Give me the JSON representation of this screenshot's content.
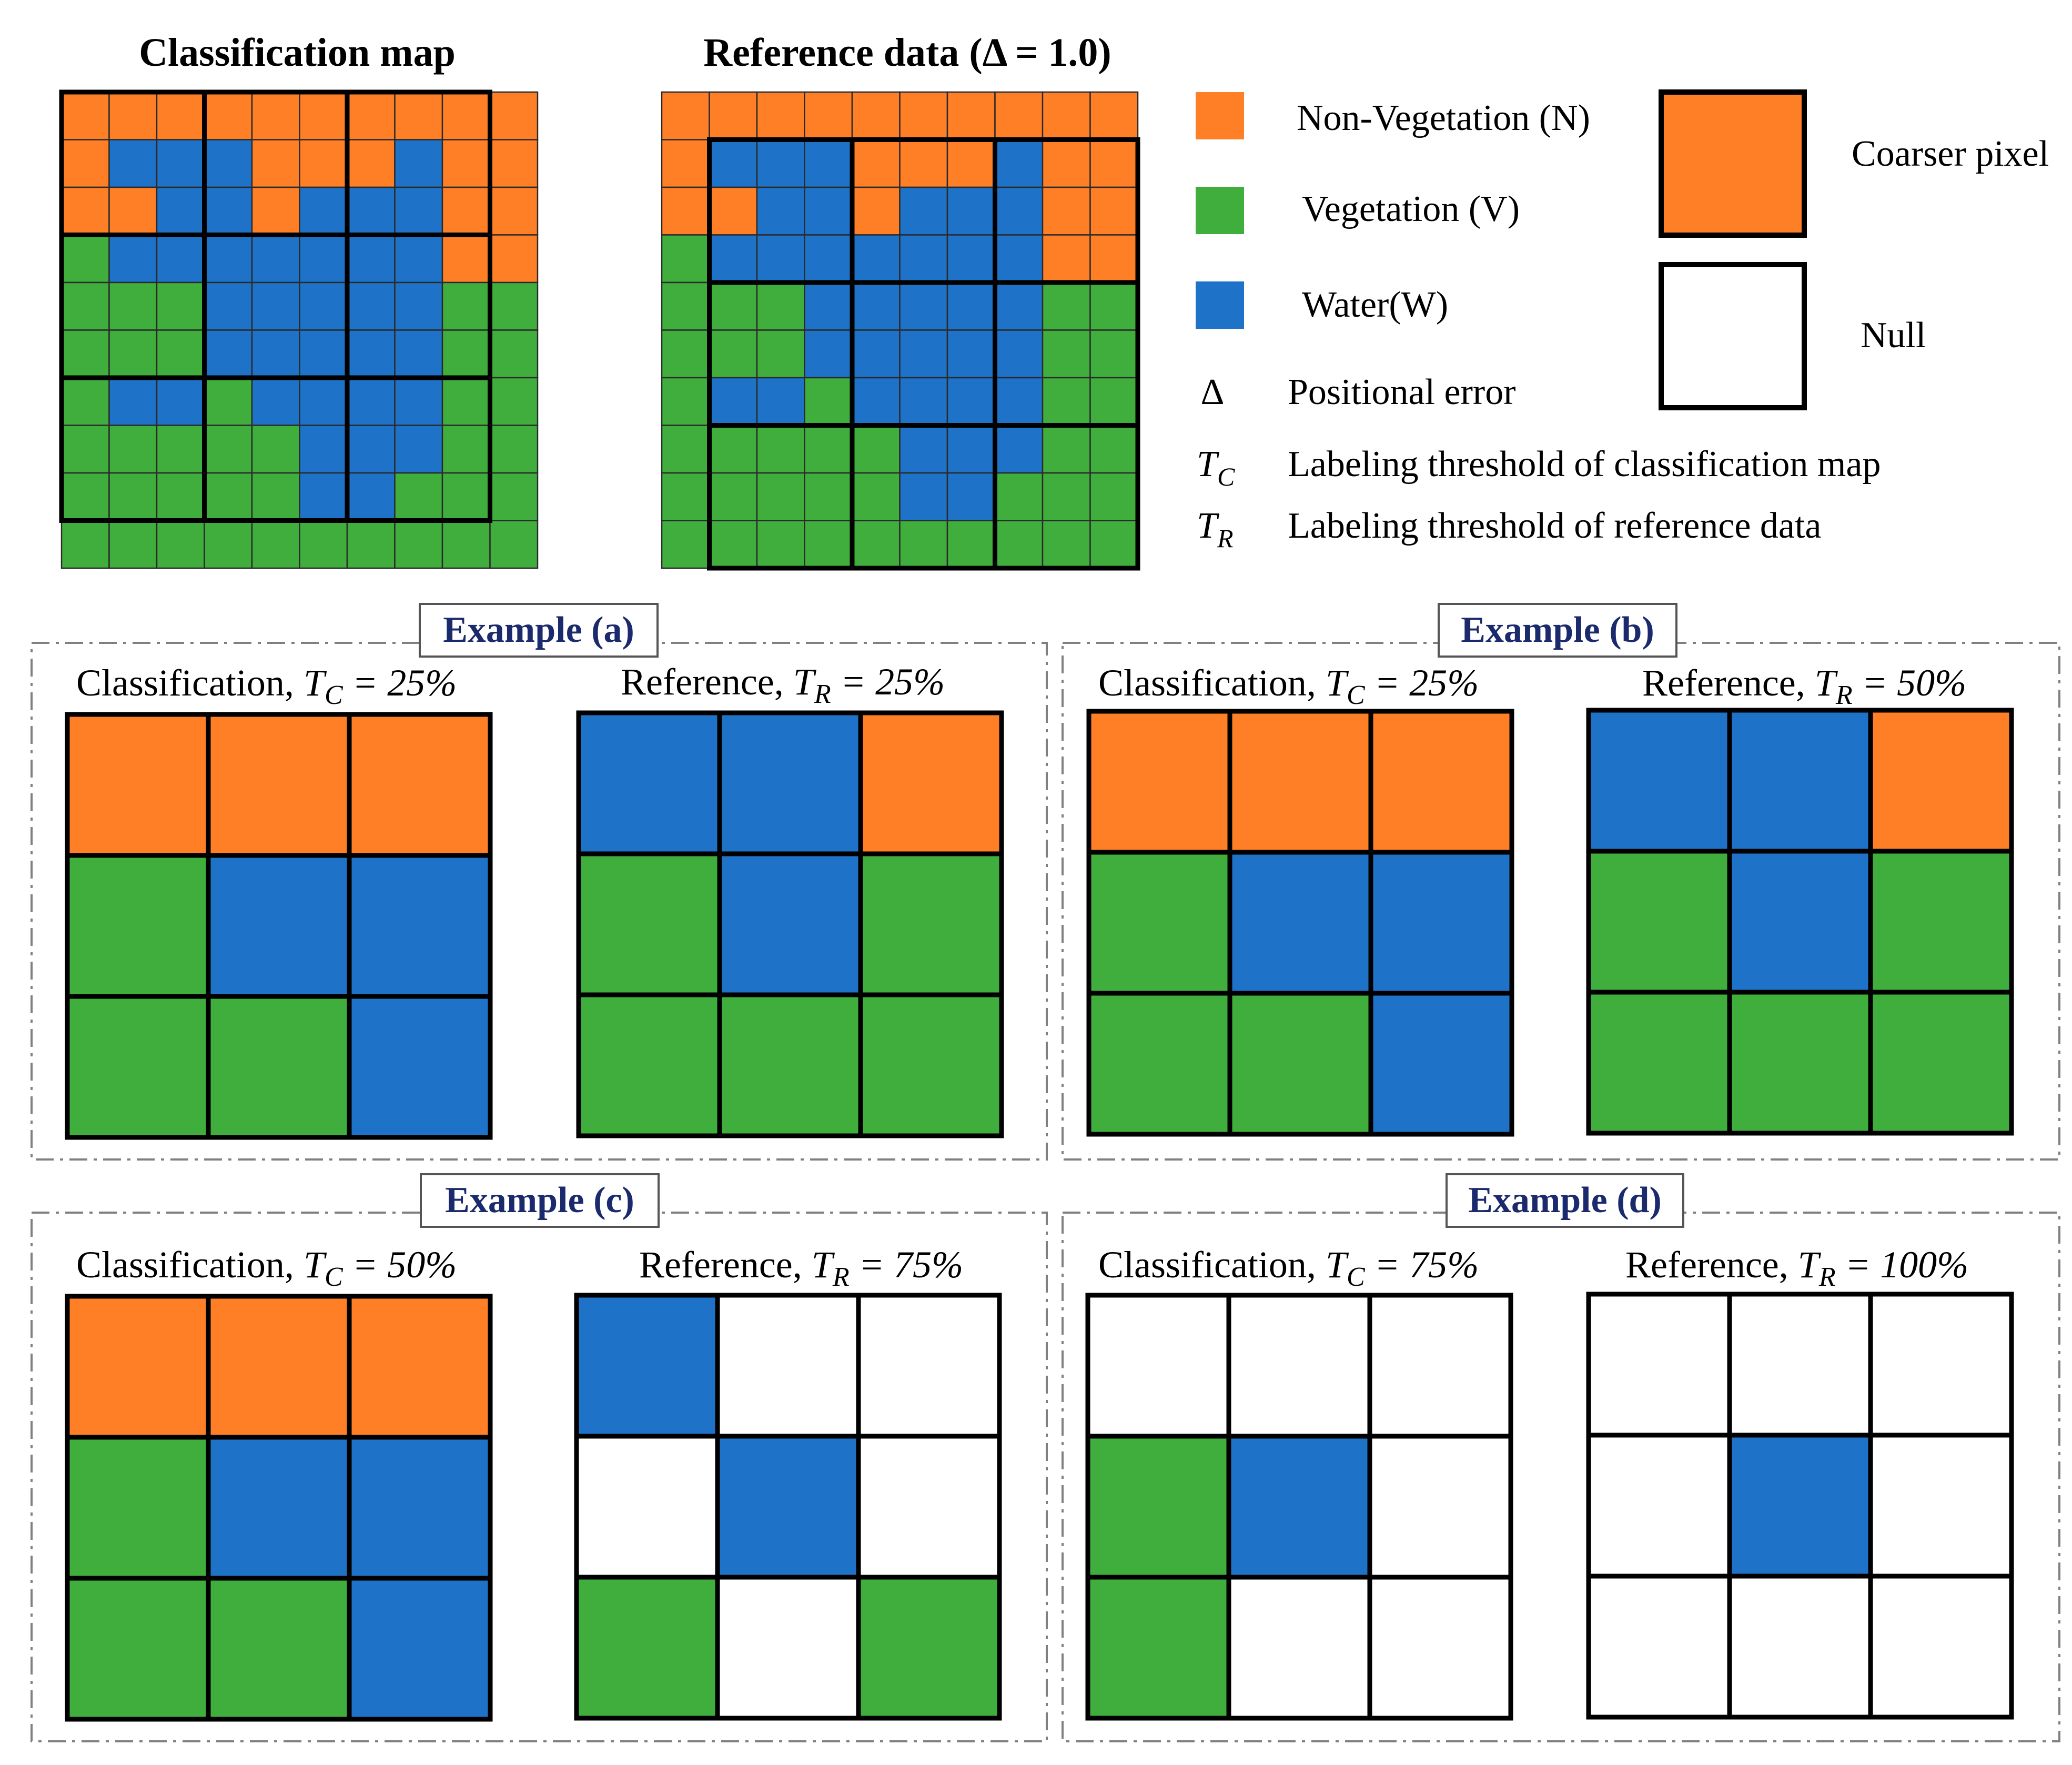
{
  "colors": {
    "N": "#FF7F27",
    "V": "#40AE3C",
    "W": "#1E73C8",
    "null": "#FFFFFF",
    "grid_line": "#000000",
    "example_label": "#1a2a6c",
    "dash": "#808080"
  },
  "titles": {
    "classification_map": "Classification map",
    "reference_data": "Reference data (Δ = 1.0)"
  },
  "legend": {
    "non_vegetation": "Non-Vegetation (N)",
    "vegetation": "Vegetation (V)",
    "water": "Water(W)",
    "delta_symbol": "Δ",
    "positional_error": "Positional error",
    "tc_symbol_main": "T",
    "tc_symbol_sub": "C",
    "tc_desc": "Labeling threshold of classification map",
    "tr_symbol_main": "T",
    "tr_symbol_sub": "R",
    "tr_desc": "Labeling threshold of reference data",
    "coarser_pixel": "Coarser pixel",
    "null": "Null"
  },
  "classification_grid": [
    [
      "N",
      "N",
      "N",
      "N",
      "N",
      "N",
      "N",
      "N",
      "N",
      "N"
    ],
    [
      "N",
      "W",
      "W",
      "W",
      "N",
      "N",
      "N",
      "W",
      "N",
      "N"
    ],
    [
      "N",
      "N",
      "W",
      "W",
      "N",
      "W",
      "W",
      "W",
      "N",
      "N"
    ],
    [
      "V",
      "W",
      "W",
      "W",
      "W",
      "W",
      "W",
      "W",
      "N",
      "N"
    ],
    [
      "V",
      "V",
      "V",
      "W",
      "W",
      "W",
      "W",
      "W",
      "V",
      "V"
    ],
    [
      "V",
      "V",
      "V",
      "W",
      "W",
      "W",
      "W",
      "W",
      "V",
      "V"
    ],
    [
      "V",
      "W",
      "W",
      "V",
      "W",
      "W",
      "W",
      "W",
      "V",
      "V"
    ],
    [
      "V",
      "V",
      "V",
      "V",
      "V",
      "W",
      "W",
      "W",
      "V",
      "V"
    ],
    [
      "V",
      "V",
      "V",
      "V",
      "V",
      "W",
      "W",
      "V",
      "V",
      "V"
    ],
    [
      "V",
      "V",
      "V",
      "V",
      "V",
      "V",
      "V",
      "V",
      "V",
      "V"
    ]
  ],
  "reference_grid": [
    [
      "N",
      "N",
      "N",
      "N",
      "N",
      "N",
      "N",
      "N",
      "N",
      "N"
    ],
    [
      "N",
      "W",
      "W",
      "W",
      "N",
      "N",
      "N",
      "W",
      "N",
      "N"
    ],
    [
      "N",
      "N",
      "W",
      "W",
      "N",
      "W",
      "W",
      "W",
      "N",
      "N"
    ],
    [
      "V",
      "W",
      "W",
      "W",
      "W",
      "W",
      "W",
      "W",
      "N",
      "N"
    ],
    [
      "V",
      "V",
      "V",
      "W",
      "W",
      "W",
      "W",
      "W",
      "V",
      "V"
    ],
    [
      "V",
      "V",
      "V",
      "W",
      "W",
      "W",
      "W",
      "W",
      "V",
      "V"
    ],
    [
      "V",
      "W",
      "W",
      "V",
      "W",
      "W",
      "W",
      "W",
      "V",
      "V"
    ],
    [
      "V",
      "V",
      "V",
      "V",
      "V",
      "W",
      "W",
      "W",
      "V",
      "V"
    ],
    [
      "V",
      "V",
      "V",
      "V",
      "V",
      "W",
      "W",
      "V",
      "V",
      "V"
    ],
    [
      "V",
      "V",
      "V",
      "V",
      "V",
      "V",
      "V",
      "V",
      "V",
      "V"
    ]
  ],
  "examples": [
    {
      "label": "Example (a)",
      "classification": {
        "title": "Classification, ",
        "threshold_symbol": "T",
        "threshold_sub": "C",
        "threshold_value": " = 25%",
        "cells": [
          [
            "N",
            "N",
            "N"
          ],
          [
            "V",
            "W",
            "W"
          ],
          [
            "V",
            "V",
            "W"
          ]
        ]
      },
      "reference": {
        "title": "Reference, ",
        "threshold_symbol": "T",
        "threshold_sub": "R",
        "threshold_value": " = 25%",
        "cells": [
          [
            "W",
            "W",
            "N"
          ],
          [
            "V",
            "W",
            "V"
          ],
          [
            "V",
            "V",
            "V"
          ]
        ]
      }
    },
    {
      "label": "Example (b)",
      "classification": {
        "title": "Classification, ",
        "threshold_symbol": "T",
        "threshold_sub": "C",
        "threshold_value": " = 25%",
        "cells": [
          [
            "N",
            "N",
            "N"
          ],
          [
            "V",
            "W",
            "W"
          ],
          [
            "V",
            "V",
            "W"
          ]
        ]
      },
      "reference": {
        "title": "Reference, ",
        "threshold_symbol": "T",
        "threshold_sub": "R",
        "threshold_value": " = 50%",
        "cells": [
          [
            "W",
            "W",
            "N"
          ],
          [
            "V",
            "W",
            "V"
          ],
          [
            "V",
            "V",
            "V"
          ]
        ]
      }
    },
    {
      "label": "Example (c)",
      "classification": {
        "title": "Classification, ",
        "threshold_symbol": "T",
        "threshold_sub": "C",
        "threshold_value": " = 50%",
        "cells": [
          [
            "N",
            "N",
            "N"
          ],
          [
            "V",
            "W",
            "W"
          ],
          [
            "V",
            "V",
            "W"
          ]
        ]
      },
      "reference": {
        "title": "Reference, ",
        "threshold_symbol": "T",
        "threshold_sub": "R",
        "threshold_value": " = 75%",
        "cells": [
          [
            "W",
            "null",
            "null"
          ],
          [
            "null",
            "W",
            "null"
          ],
          [
            "V",
            "null",
            "V"
          ]
        ]
      }
    },
    {
      "label": "Example (d)",
      "classification": {
        "title": "Classification, ",
        "threshold_symbol": "T",
        "threshold_sub": "C",
        "threshold_value": " = 75%",
        "cells": [
          [
            "null",
            "null",
            "null"
          ],
          [
            "V",
            "W",
            "null"
          ],
          [
            "V",
            "null",
            "null"
          ]
        ]
      },
      "reference": {
        "title": "Reference, ",
        "threshold_symbol": "T",
        "threshold_sub": "R",
        "threshold_value": " = 100%",
        "cells": [
          [
            "null",
            "null",
            "null"
          ],
          [
            "null",
            "W",
            "null"
          ],
          [
            "null",
            "null",
            "null"
          ]
        ]
      }
    }
  ]
}
